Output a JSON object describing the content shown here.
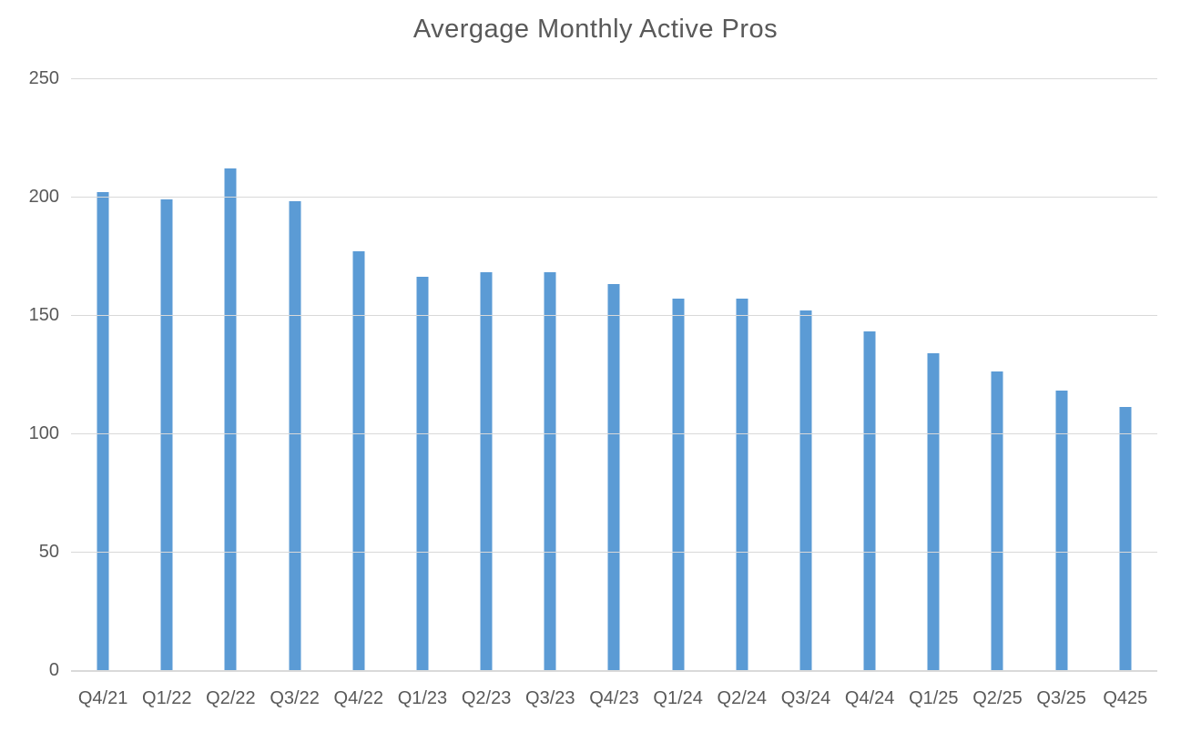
{
  "chart_data": {
    "type": "bar",
    "title": "Avergage Monthly Active Pros",
    "categories": [
      "Q4/21",
      "Q1/22",
      "Q2/22",
      "Q3/22",
      "Q4/22",
      "Q1/23",
      "Q2/23",
      "Q3/23",
      "Q4/23",
      "Q1/24",
      "Q2/24",
      "Q3/24",
      "Q4/24",
      "Q1/25",
      "Q2/25",
      "Q3/25",
      "Q425"
    ],
    "values": [
      202,
      199,
      212,
      198,
      177,
      166,
      168,
      168,
      163,
      157,
      157,
      152,
      143,
      134,
      126,
      118,
      111
    ],
    "xlabel": "",
    "ylabel": "",
    "ylim": [
      0,
      250
    ],
    "yticks": [
      0,
      50,
      100,
      150,
      200,
      250
    ],
    "grid": "horizontal",
    "legend": "none",
    "colors": {
      "bar": "#5B9BD5",
      "gridline": "#D9D9D9",
      "axis_line": "#D9D9D9",
      "text": "#595959",
      "background": "#FFFFFF"
    }
  }
}
